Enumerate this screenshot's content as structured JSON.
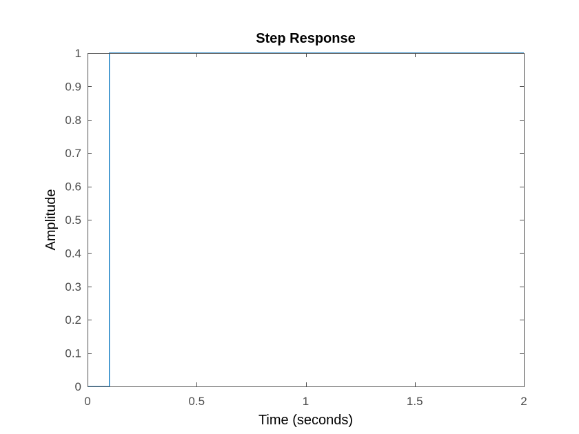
{
  "chart_data": {
    "type": "line",
    "title": "Step Response",
    "xlabel": "Time (seconds)",
    "ylabel": "Amplitude",
    "xlim": [
      0,
      2
    ],
    "ylim": [
      0,
      1
    ],
    "x_ticks": [
      0,
      0.5,
      1,
      1.5,
      2
    ],
    "x_tick_labels": [
      "0",
      "0.5",
      "1",
      "1.5",
      "2"
    ],
    "y_ticks": [
      0,
      0.1,
      0.2,
      0.3,
      0.4,
      0.5,
      0.6,
      0.7,
      0.8,
      0.9,
      1
    ],
    "y_tick_labels": [
      "0",
      "0.1",
      "0.2",
      "0.3",
      "0.4",
      "0.5",
      "0.6",
      "0.7",
      "0.8",
      "0.9",
      "1"
    ],
    "grid": false,
    "legend": "none",
    "series": [
      {
        "x": [
          0,
          0.1,
          0.1,
          2
        ],
        "y": [
          0,
          0,
          1,
          1
        ],
        "color": "#0072bd"
      }
    ],
    "axis_color": "#4d4d4d"
  }
}
